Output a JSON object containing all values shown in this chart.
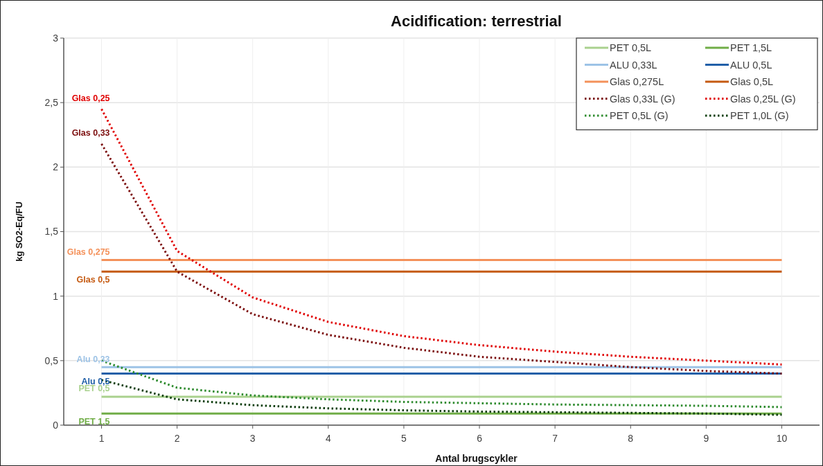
{
  "chart_data": {
    "type": "line",
    "title": "Acidification: terrestrial",
    "xlabel": "Antal brugscykler",
    "ylabel": "kg SO2-Eq/FU",
    "x": [
      1,
      2,
      3,
      4,
      5,
      6,
      7,
      8,
      9,
      10
    ],
    "xlim": [
      0.5,
      10.5
    ],
    "xticks": [
      1,
      2,
      3,
      4,
      5,
      6,
      7,
      8,
      9,
      10
    ],
    "ylim": [
      0,
      3
    ],
    "yticks": [
      {
        "value": 0,
        "label": "0"
      },
      {
        "value": 0.5,
        "label": "0,5"
      },
      {
        "value": 1,
        "label": "1"
      },
      {
        "value": 1.5,
        "label": "1,5"
      },
      {
        "value": 2,
        "label": "2"
      },
      {
        "value": 2.5,
        "label": "2,5"
      },
      {
        "value": 3,
        "label": "3"
      }
    ],
    "grid": true,
    "legend": "top right",
    "marker": "none",
    "series": [
      {
        "name": "PET 0,5L",
        "color": "#a9d18e",
        "line_style": "solid",
        "values": [
          0.22,
          0.22,
          0.22,
          0.22,
          0.22,
          0.22,
          0.22,
          0.22,
          0.22,
          0.22
        ]
      },
      {
        "name": "PET 1,5L",
        "color": "#70ad47",
        "line_style": "solid",
        "values": [
          0.09,
          0.09,
          0.09,
          0.09,
          0.09,
          0.09,
          0.09,
          0.09,
          0.09,
          0.09
        ]
      },
      {
        "name": "ALU 0,33L",
        "color": "#9dc3e6",
        "line_style": "solid",
        "values": [
          0.45,
          0.45,
          0.45,
          0.45,
          0.45,
          0.45,
          0.45,
          0.45,
          0.45,
          0.45
        ]
      },
      {
        "name": "ALU 0,5L",
        "color": "#2160a8",
        "line_style": "solid",
        "values": [
          0.4,
          0.4,
          0.4,
          0.4,
          0.4,
          0.4,
          0.4,
          0.4,
          0.4,
          0.4
        ]
      },
      {
        "name": "Glas 0,275L",
        "color": "#f4915a",
        "line_style": "solid",
        "values": [
          1.28,
          1.28,
          1.28,
          1.28,
          1.28,
          1.28,
          1.28,
          1.28,
          1.28,
          1.28
        ]
      },
      {
        "name": "Glas 0,5L",
        "color": "#c55a11",
        "line_style": "solid",
        "values": [
          1.19,
          1.19,
          1.19,
          1.19,
          1.19,
          1.19,
          1.19,
          1.19,
          1.19,
          1.19
        ]
      },
      {
        "name": "Glas 0,33L (G)",
        "color": "#7b0c0c",
        "line_style": "dotted",
        "values": [
          2.18,
          1.19,
          0.86,
          0.7,
          0.6,
          0.53,
          0.49,
          0.45,
          0.42,
          0.4
        ]
      },
      {
        "name": "Glas 0,25L (G)",
        "color": "#e00000",
        "line_style": "dotted",
        "values": [
          2.45,
          1.35,
          0.99,
          0.8,
          0.69,
          0.62,
          0.57,
          0.53,
          0.5,
          0.47
        ]
      },
      {
        "name": "PET 0,5L (G)",
        "color": "#2e8b2e",
        "line_style": "dotted",
        "values": [
          0.5,
          0.29,
          0.23,
          0.2,
          0.18,
          0.17,
          0.16,
          0.155,
          0.15,
          0.14
        ]
      },
      {
        "name": "PET 1,0L (G)",
        "color": "#0b3d0b",
        "line_style": "dotted",
        "values": [
          0.35,
          0.2,
          0.155,
          0.13,
          0.115,
          0.105,
          0.1,
          0.095,
          0.09,
          0.08
        ]
      }
    ],
    "annotations": [
      "PET 0,5",
      "PET 1,5",
      "Alu 0,33",
      "Alu 0,5",
      "Glas 0,275",
      "Glas 0,5",
      "Glas 0,33",
      "Glas 0,25"
    ]
  }
}
